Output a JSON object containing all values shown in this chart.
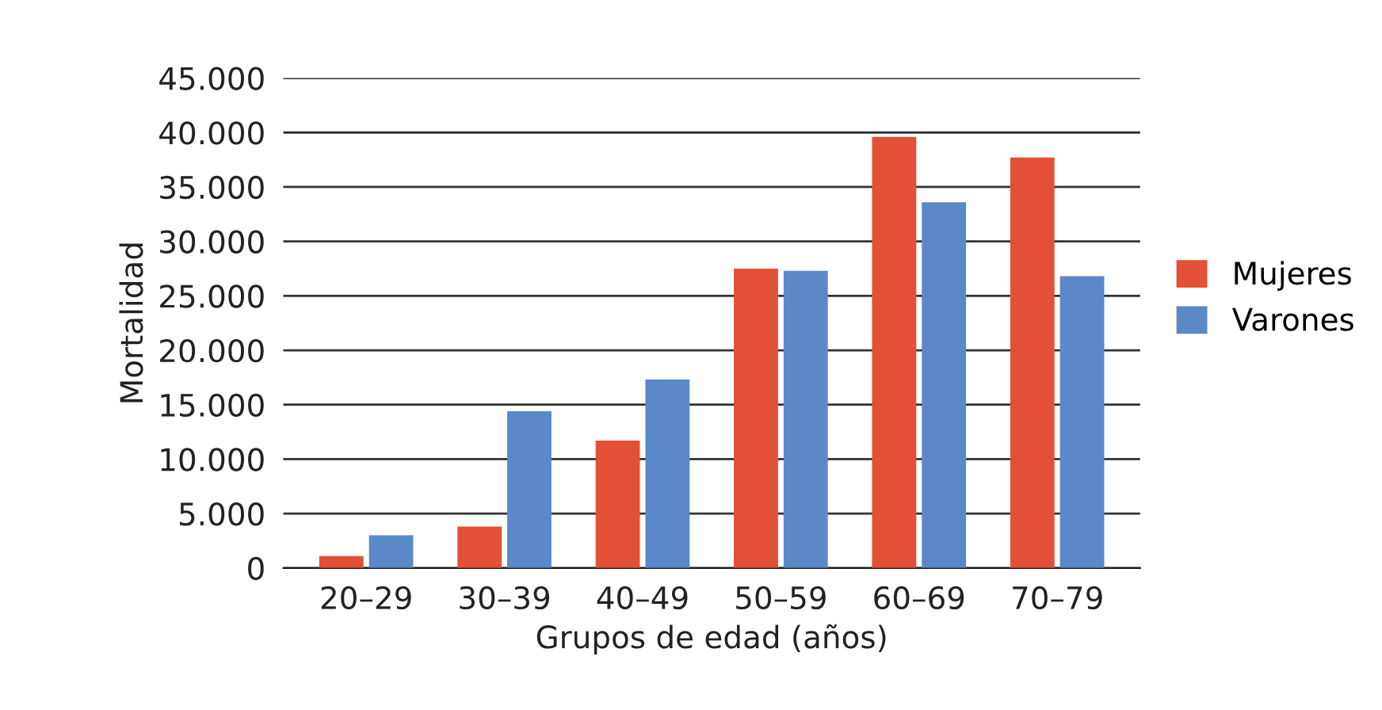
{
  "chart_data": {
    "type": "bar",
    "xlabel": "Grupos de edad (años)",
    "ylabel": "Mortalidad",
    "categories": [
      "20–29",
      "30–39",
      "40–49",
      "50–59",
      "60–69",
      "70–79"
    ],
    "series": [
      {
        "name": "Mujeres",
        "color": "#e44f37",
        "values": [
          1100,
          3800,
          11700,
          27500,
          39600,
          37700
        ]
      },
      {
        "name": "Varones",
        "color": "#5b88c8",
        "values": [
          3000,
          14400,
          17300,
          27300,
          33600,
          26800
        ]
      }
    ],
    "ylim": [
      0,
      45000
    ],
    "yticks": [
      0,
      {
        "value": 5000,
        "label": "5.000"
      },
      {
        "value": 10000,
        "label": "10.000"
      },
      {
        "value": 15000,
        "label": "15.000"
      },
      {
        "value": 20000,
        "label": "20.000"
      },
      {
        "value": 25000,
        "label": "25.000"
      },
      {
        "value": 30000,
        "label": "30.000"
      },
      {
        "value": 35000,
        "label": "35.000"
      },
      {
        "value": 40000,
        "label": "40.000"
      },
      {
        "value": 45000,
        "label": "45.000"
      }
    ],
    "grid": "y",
    "legend": "right"
  }
}
